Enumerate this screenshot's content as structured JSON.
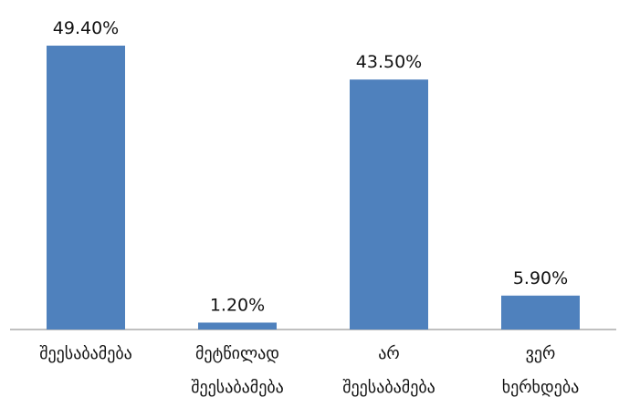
{
  "chart_data": {
    "type": "bar",
    "categories": [
      [
        "შეესაბამება"
      ],
      [
        "მეტწილად",
        "შეესაბამება"
      ],
      [
        "არ",
        "შეესაბამება"
      ],
      [
        "ვერ",
        "ხერხდება"
      ]
    ],
    "values": [
      49.4,
      1.2,
      43.5,
      5.9
    ],
    "value_labels": [
      "49.40%",
      "1.20%",
      "43.50%",
      "5.90%"
    ],
    "title": "",
    "xlabel": "",
    "ylabel": "",
    "ylim": [
      0,
      49.4
    ],
    "grid": false,
    "legend": "none",
    "colors": {
      "bar": "#4f81bd",
      "axis": "#808080",
      "text": "#111111"
    }
  }
}
